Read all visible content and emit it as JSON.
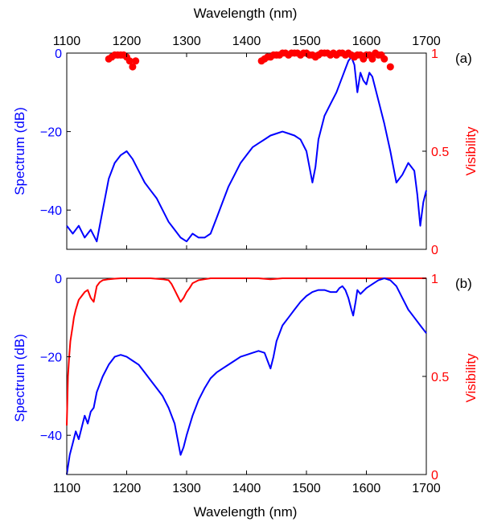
{
  "figure": {
    "top_axis_label": "Wavelength (nm)",
    "bottom_axis_label": "Wavelength (nm)"
  },
  "colors": {
    "spectrum": "#0000ff",
    "visibility": "#ff0000",
    "axis": "#000000"
  },
  "chart_data": [
    {
      "type": "line",
      "panel_label": "(a)",
      "xlabel": "Wavelength (nm)",
      "xlim": [
        1100,
        1700
      ],
      "x_ticks": [
        1100,
        1200,
        1300,
        1400,
        1500,
        1600,
        1700
      ],
      "x_axis_position": "top",
      "ylabel_left": "Spectrum (dB)",
      "ylim_left": [
        -50,
        0
      ],
      "y_ticks_left": [
        0,
        -20,
        -40
      ],
      "ylabel_right": "Visibility",
      "ylim_right": [
        0,
        1
      ],
      "y_ticks_right": [
        "0",
        "0.5",
        "1"
      ],
      "spectrum": {
        "x": [
          1100,
          1110,
          1120,
          1130,
          1140,
          1150,
          1160,
          1170,
          1180,
          1190,
          1200,
          1210,
          1220,
          1230,
          1240,
          1250,
          1260,
          1270,
          1280,
          1290,
          1300,
          1310,
          1320,
          1330,
          1340,
          1350,
          1360,
          1370,
          1380,
          1390,
          1400,
          1410,
          1420,
          1430,
          1440,
          1450,
          1460,
          1470,
          1480,
          1490,
          1500,
          1505,
          1510,
          1515,
          1520,
          1530,
          1540,
          1550,
          1560,
          1565,
          1570,
          1575,
          1580,
          1585,
          1590,
          1595,
          1600,
          1605,
          1610,
          1620,
          1630,
          1640,
          1650,
          1660,
          1670,
          1680,
          1685,
          1690,
          1695,
          1700
        ],
        "y": [
          -44,
          -46,
          -44,
          -47,
          -45,
          -48,
          -40,
          -32,
          -28,
          -26,
          -25,
          -27,
          -30,
          -33,
          -35,
          -37,
          -40,
          -43,
          -45,
          -47,
          -48,
          -46,
          -47,
          -47,
          -46,
          -42,
          -38,
          -34,
          -31,
          -28,
          -26,
          -24,
          -23,
          -22,
          -21,
          -20.5,
          -20,
          -20.5,
          -21,
          -22,
          -25,
          -29,
          -33,
          -29,
          -22,
          -16,
          -13,
          -10,
          -6,
          -4,
          -2,
          -1,
          -3,
          -10,
          -5,
          -7,
          -8,
          -5,
          -6,
          -12,
          -18,
          -25,
          -33,
          -31,
          -28,
          -30,
          -36,
          -44,
          -38,
          -35
        ]
      },
      "visibility": {
        "x": [
          1170,
          1175,
          1180,
          1185,
          1190,
          1195,
          1200,
          1205,
          1210,
          1215,
          1425,
          1430,
          1435,
          1440,
          1445,
          1450,
          1455,
          1460,
          1465,
          1470,
          1475,
          1480,
          1485,
          1490,
          1495,
          1500,
          1505,
          1510,
          1515,
          1520,
          1525,
          1530,
          1535,
          1540,
          1545,
          1550,
          1555,
          1560,
          1565,
          1570,
          1575,
          1580,
          1585,
          1590,
          1595,
          1600,
          1605,
          1610,
          1615,
          1620,
          1625,
          1630,
          1640
        ],
        "y": [
          0.97,
          0.98,
          0.99,
          0.99,
          0.99,
          0.99,
          0.98,
          0.96,
          0.93,
          0.96,
          0.96,
          0.97,
          0.98,
          0.98,
          0.99,
          0.99,
          0.99,
          1.0,
          1.0,
          0.99,
          1.0,
          1.0,
          1.0,
          0.99,
          1.0,
          1.0,
          0.99,
          0.99,
          0.98,
          0.99,
          1.0,
          1.0,
          1.0,
          0.99,
          1.0,
          0.99,
          1.0,
          1.0,
          0.99,
          1.0,
          0.99,
          0.98,
          0.99,
          0.99,
          0.97,
          0.99,
          0.99,
          0.97,
          1.0,
          0.99,
          0.99,
          0.97,
          0.93
        ]
      }
    },
    {
      "type": "line",
      "panel_label": "(b)",
      "xlabel": "Wavelength (nm)",
      "xlim": [
        1100,
        1700
      ],
      "x_ticks": [
        1100,
        1200,
        1300,
        1400,
        1500,
        1600,
        1700
      ],
      "x_axis_position": "bottom",
      "ylabel_left": "Spectrum (dB)",
      "ylim_left": [
        -50,
        0
      ],
      "y_ticks_left": [
        0,
        -20,
        -40
      ],
      "ylabel_right": "Visibility",
      "ylim_right": [
        0,
        1
      ],
      "y_ticks_right": [
        "0",
        "0.5",
        "1"
      ],
      "spectrum": {
        "x": [
          1100,
          1105,
          1110,
          1115,
          1120,
          1125,
          1130,
          1135,
          1140,
          1145,
          1150,
          1155,
          1160,
          1170,
          1180,
          1190,
          1200,
          1210,
          1220,
          1230,
          1240,
          1250,
          1260,
          1270,
          1280,
          1285,
          1290,
          1295,
          1300,
          1310,
          1320,
          1330,
          1340,
          1350,
          1360,
          1370,
          1380,
          1390,
          1400,
          1410,
          1420,
          1430,
          1435,
          1440,
          1445,
          1450,
          1460,
          1470,
          1480,
          1490,
          1500,
          1510,
          1520,
          1530,
          1540,
          1550,
          1555,
          1560,
          1565,
          1570,
          1575,
          1578,
          1582,
          1585,
          1590,
          1600,
          1610,
          1620,
          1630,
          1640,
          1650,
          1660,
          1670,
          1680,
          1690,
          1700
        ],
        "y": [
          -50,
          -45,
          -42,
          -39,
          -41,
          -38,
          -35,
          -37,
          -34,
          -33,
          -29,
          -27,
          -25,
          -22,
          -20,
          -19.5,
          -20,
          -21,
          -22,
          -24,
          -26,
          -28,
          -30,
          -33,
          -37,
          -41,
          -45,
          -43,
          -40,
          -35,
          -31,
          -28,
          -25.5,
          -24,
          -23,
          -22,
          -21,
          -20,
          -19.5,
          -19,
          -18.5,
          -19,
          -21,
          -23,
          -20,
          -16,
          -12,
          -10,
          -8,
          -6,
          -4.5,
          -3.5,
          -3,
          -3,
          -3.5,
          -3.5,
          -2.5,
          -2,
          -3,
          -5,
          -8,
          -9.5,
          -6,
          -3,
          -4,
          -2.5,
          -1.5,
          -0.5,
          0,
          -0.5,
          -2,
          -5,
          -8,
          -10,
          -12,
          -14
        ]
      },
      "visibility": {
        "x": [
          1100,
          1102,
          1104,
          1106,
          1108,
          1110,
          1112,
          1115,
          1118,
          1120,
          1125,
          1130,
          1135,
          1140,
          1145,
          1150,
          1155,
          1160,
          1170,
          1180,
          1190,
          1200,
          1220,
          1240,
          1260,
          1270,
          1275,
          1280,
          1285,
          1290,
          1295,
          1300,
          1305,
          1310,
          1320,
          1330,
          1340,
          1360,
          1380,
          1400,
          1420,
          1440,
          1460,
          1500,
          1550,
          1600,
          1650,
          1700
        ],
        "y": [
          0.25,
          0.5,
          0.6,
          0.68,
          0.72,
          0.76,
          0.8,
          0.84,
          0.87,
          0.89,
          0.91,
          0.93,
          0.94,
          0.9,
          0.88,
          0.96,
          0.98,
          0.99,
          0.995,
          0.998,
          1.0,
          1.0,
          1.0,
          1.0,
          0.995,
          0.99,
          0.97,
          0.94,
          0.91,
          0.88,
          0.9,
          0.93,
          0.95,
          0.975,
          0.99,
          0.995,
          1.0,
          1.0,
          1.0,
          1.0,
          1.0,
          0.995,
          1.0,
          1.0,
          1.0,
          1.0,
          1.0,
          1.0
        ]
      }
    }
  ]
}
